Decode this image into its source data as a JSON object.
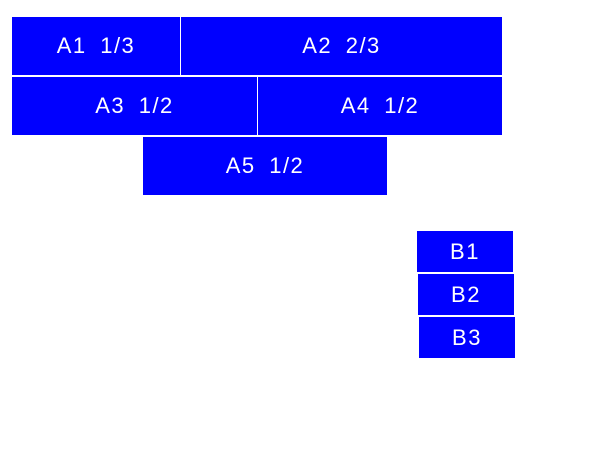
{
  "accent_color": "#0000ff",
  "group_a": [
    {
      "label": "A1 1/3"
    },
    {
      "label": "A2 2/3"
    },
    {
      "label": "A3 1/2"
    },
    {
      "label": "A4 1/2"
    },
    {
      "label": "A5 1/2"
    }
  ],
  "group_b": [
    {
      "label": "B1"
    },
    {
      "label": "B2"
    },
    {
      "label": "B3"
    }
  ]
}
